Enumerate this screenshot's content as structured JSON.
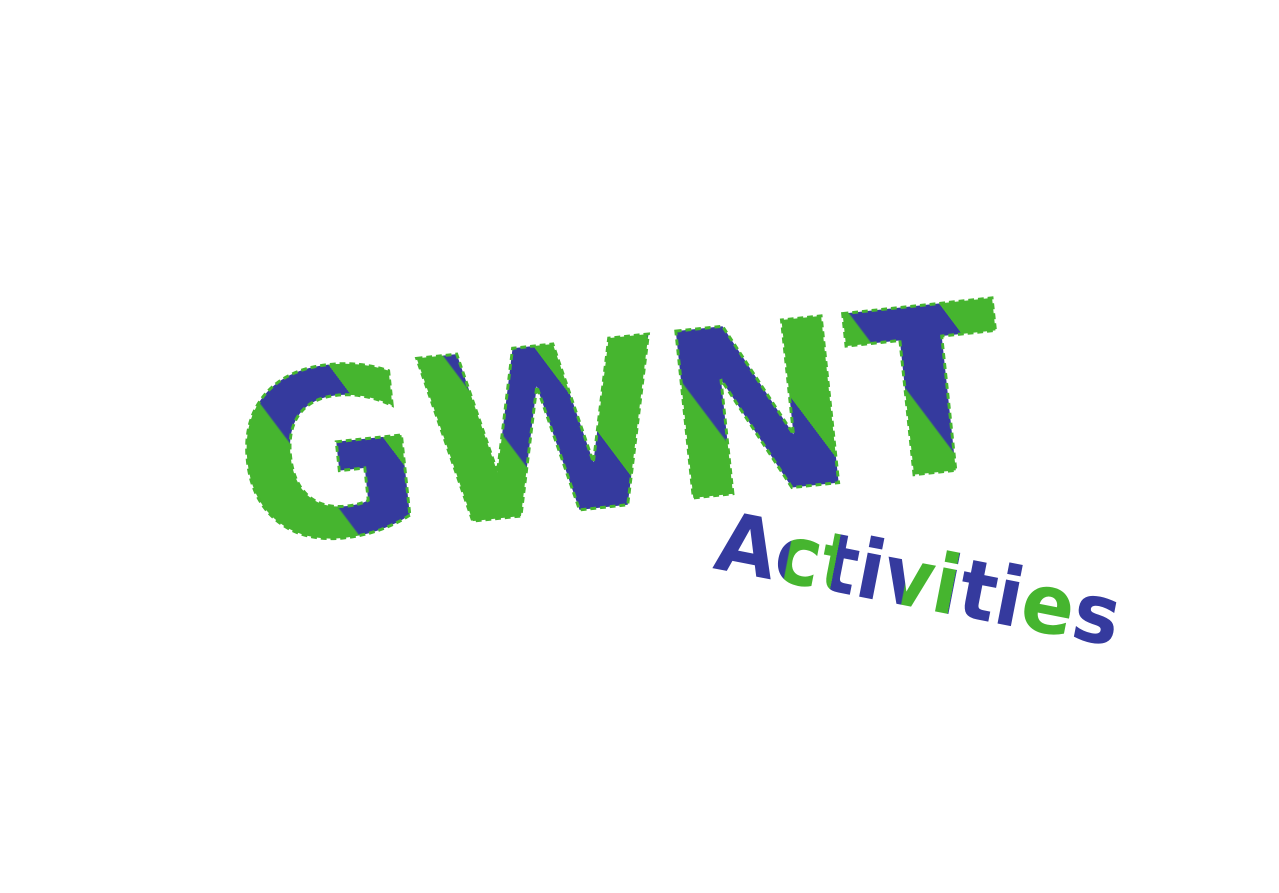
{
  "logo": {
    "title": "GWNT",
    "subtitle": "Activities"
  }
}
